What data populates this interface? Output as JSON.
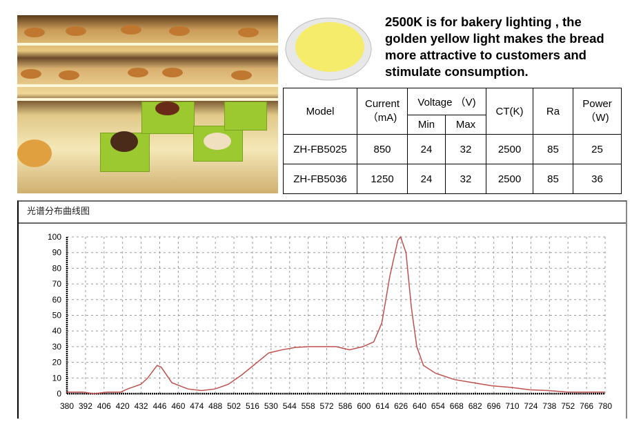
{
  "description": "2500K is for bakery lighting , the golden yellow light makes the bread more attractive to customers and stimulate consumption.",
  "table": {
    "headers": {
      "model": "Model",
      "current": "Current\n（mA)",
      "voltage": "Voltage （V)",
      "min": "Min",
      "max": "Max",
      "ct": "CT(K)",
      "ra": "Ra",
      "power": "Power\n（W)"
    },
    "rows": [
      [
        "ZH-FB5025",
        "850",
        "24",
        "32",
        "2500",
        "85",
        "25"
      ],
      [
        "ZH-FB5036",
        "1250",
        "24",
        "32",
        "2500",
        "85",
        "36"
      ]
    ]
  },
  "chart_data": {
    "type": "line",
    "title": "光谱分布曲线图",
    "xlabel": "",
    "ylabel": "",
    "x_ticks": [
      380,
      392,
      406,
      420,
      432,
      446,
      460,
      474,
      488,
      502,
      516,
      530,
      544,
      558,
      572,
      586,
      600,
      614,
      626,
      640,
      654,
      668,
      682,
      696,
      710,
      724,
      738,
      752,
      766,
      780
    ],
    "y_ticks": [
      0,
      10,
      20,
      30,
      40,
      50,
      60,
      70,
      80,
      90,
      100
    ],
    "xlim": [
      380,
      780
    ],
    "ylim": [
      0,
      100
    ],
    "grid": true,
    "line_color": "#c0504d",
    "x": [
      380,
      392,
      400,
      410,
      420,
      425,
      435,
      440,
      447,
      450,
      458,
      470,
      480,
      490,
      500,
      510,
      520,
      530,
      540,
      550,
      560,
      570,
      580,
      590,
      600,
      608,
      614,
      620,
      626,
      628,
      632,
      636,
      640,
      645,
      654,
      668,
      682,
      696,
      710,
      724,
      738,
      752,
      766,
      780
    ],
    "y": [
      1,
      1,
      0,
      1,
      1,
      3,
      6,
      10,
      18,
      17,
      7,
      3,
      2,
      3,
      6,
      12,
      19,
      26,
      28,
      29.5,
      30,
      30,
      30,
      28,
      30,
      33,
      45,
      75,
      98,
      100,
      90,
      55,
      30,
      18,
      13,
      9,
      7,
      5,
      4,
      2.5,
      2,
      1,
      1,
      1
    ]
  }
}
